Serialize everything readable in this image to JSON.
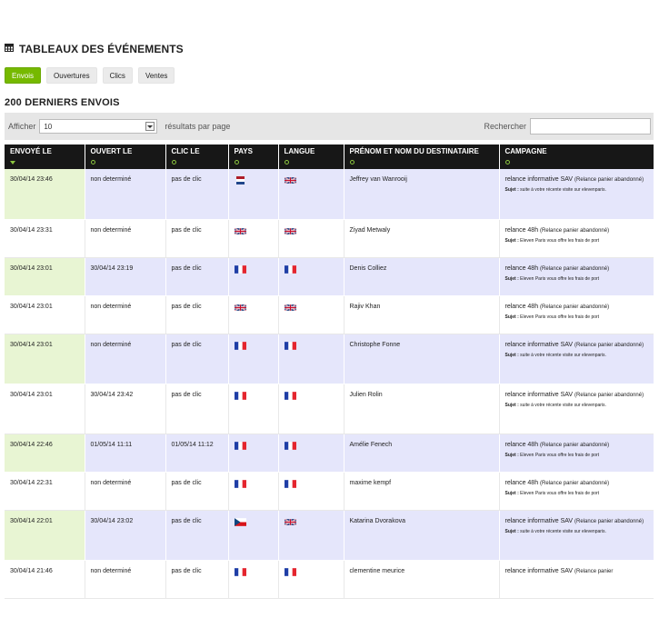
{
  "page": {
    "title": "TABLEAUX DES ÉVÉNEMENTS",
    "section_title": "200 DERNIERS ENVOIS"
  },
  "tabs": [
    {
      "label": "Envois",
      "active": true
    },
    {
      "label": "Ouvertures",
      "active": false
    },
    {
      "label": "Clics",
      "active": false
    },
    {
      "label": "Ventes",
      "active": false
    }
  ],
  "toolbar": {
    "show_label": "Afficher",
    "page_size_value": "10",
    "results_label": "résultats par page",
    "search_label": "Rechercher",
    "search_value": ""
  },
  "columns": [
    "ENVOYÉ LE",
    "OUVERT LE",
    "CLIC LE",
    "PAYS",
    "LANGUE",
    "PRÉNOM ET NOM DU DESTINATAIRE",
    "CAMPAGNE"
  ],
  "colors": {
    "accent_green": "#76b900",
    "header_bg": "#171717",
    "row_tint": "#e5e6fb",
    "sent_cell_tint": "#e8f5d3"
  },
  "subject_label": "Sujet :",
  "rows": [
    {
      "sent": "30/04/14 23:46",
      "opened": "non determiné",
      "click": "pas de clic",
      "country": "nl",
      "language": "gb",
      "name": "Jeffrey van Wanrooij",
      "campaign": "relance informative SAV",
      "campaign_type": "(Relance panier abandonné)",
      "subject": "suite à votre récente visite sur elevenparis."
    },
    {
      "sent": "30/04/14 23:31",
      "opened": "non determiné",
      "click": "pas de clic",
      "country": "gb",
      "language": "gb",
      "name": "Ziyad Metwaly",
      "campaign": "relance 48h",
      "campaign_type": "(Relance panier abandonné)",
      "subject": "Eleven Paris vous offre les frais de port"
    },
    {
      "sent": "30/04/14 23:01",
      "opened": "30/04/14 23:19",
      "click": "pas de clic",
      "country": "fr",
      "language": "fr",
      "name": "Denis Colliez",
      "campaign": "relance 48h",
      "campaign_type": "(Relance panier abandonné)",
      "subject": "Eleven Paris vous offre les frais de port"
    },
    {
      "sent": "30/04/14 23:01",
      "opened": "non determiné",
      "click": "pas de clic",
      "country": "gb",
      "language": "gb",
      "name": "Rajiv Khan",
      "campaign": "relance 48h",
      "campaign_type": "(Relance panier abandonné)",
      "subject": "Eleven Paris vous offre les frais de port"
    },
    {
      "sent": "30/04/14 23:01",
      "opened": "non determiné",
      "click": "pas de clic",
      "country": "fr",
      "language": "fr",
      "name": "Christophe Fonne",
      "campaign": "relance informative SAV",
      "campaign_type": "(Relance panier abandonné)",
      "subject": "suite à votre récente visite sur elevenparis."
    },
    {
      "sent": "30/04/14 23:01",
      "opened": "30/04/14 23:42",
      "click": "pas de clic",
      "country": "fr",
      "language": "fr",
      "name": "Julien Rolin",
      "campaign": "relance informative SAV",
      "campaign_type": "(Relance panier abandonné)",
      "subject": "suite à votre récente visite sur elevenparis."
    },
    {
      "sent": "30/04/14 22:46",
      "opened": "01/05/14 11:11",
      "click": "01/05/14 11:12",
      "country": "fr",
      "language": "fr",
      "name": "Amélie Fenech",
      "campaign": "relance 48h",
      "campaign_type": "(Relance panier abandonné)",
      "subject": "Eleven Paris vous offre les frais de port"
    },
    {
      "sent": "30/04/14 22:31",
      "opened": "non determiné",
      "click": "pas de clic",
      "country": "fr",
      "language": "fr",
      "name": "maxime kempf",
      "campaign": "relance 48h",
      "campaign_type": "(Relance panier abandonné)",
      "subject": "Eleven Paris vous offre les frais de port"
    },
    {
      "sent": "30/04/14 22:01",
      "opened": "30/04/14 23:02",
      "click": "pas de clic",
      "country": "cz",
      "language": "gb",
      "name": "Katarina Dvorakova",
      "campaign": "relance informative SAV",
      "campaign_type": "(Relance panier abandonné)",
      "subject": "suite à votre récente visite sur elevenparis."
    },
    {
      "sent": "30/04/14 21:46",
      "opened": "non determiné",
      "click": "pas de clic",
      "country": "fr",
      "language": "fr",
      "name": "clementine meurice",
      "campaign": "relance informative SAV",
      "campaign_type": "(Relance panier",
      "subject": ""
    }
  ]
}
